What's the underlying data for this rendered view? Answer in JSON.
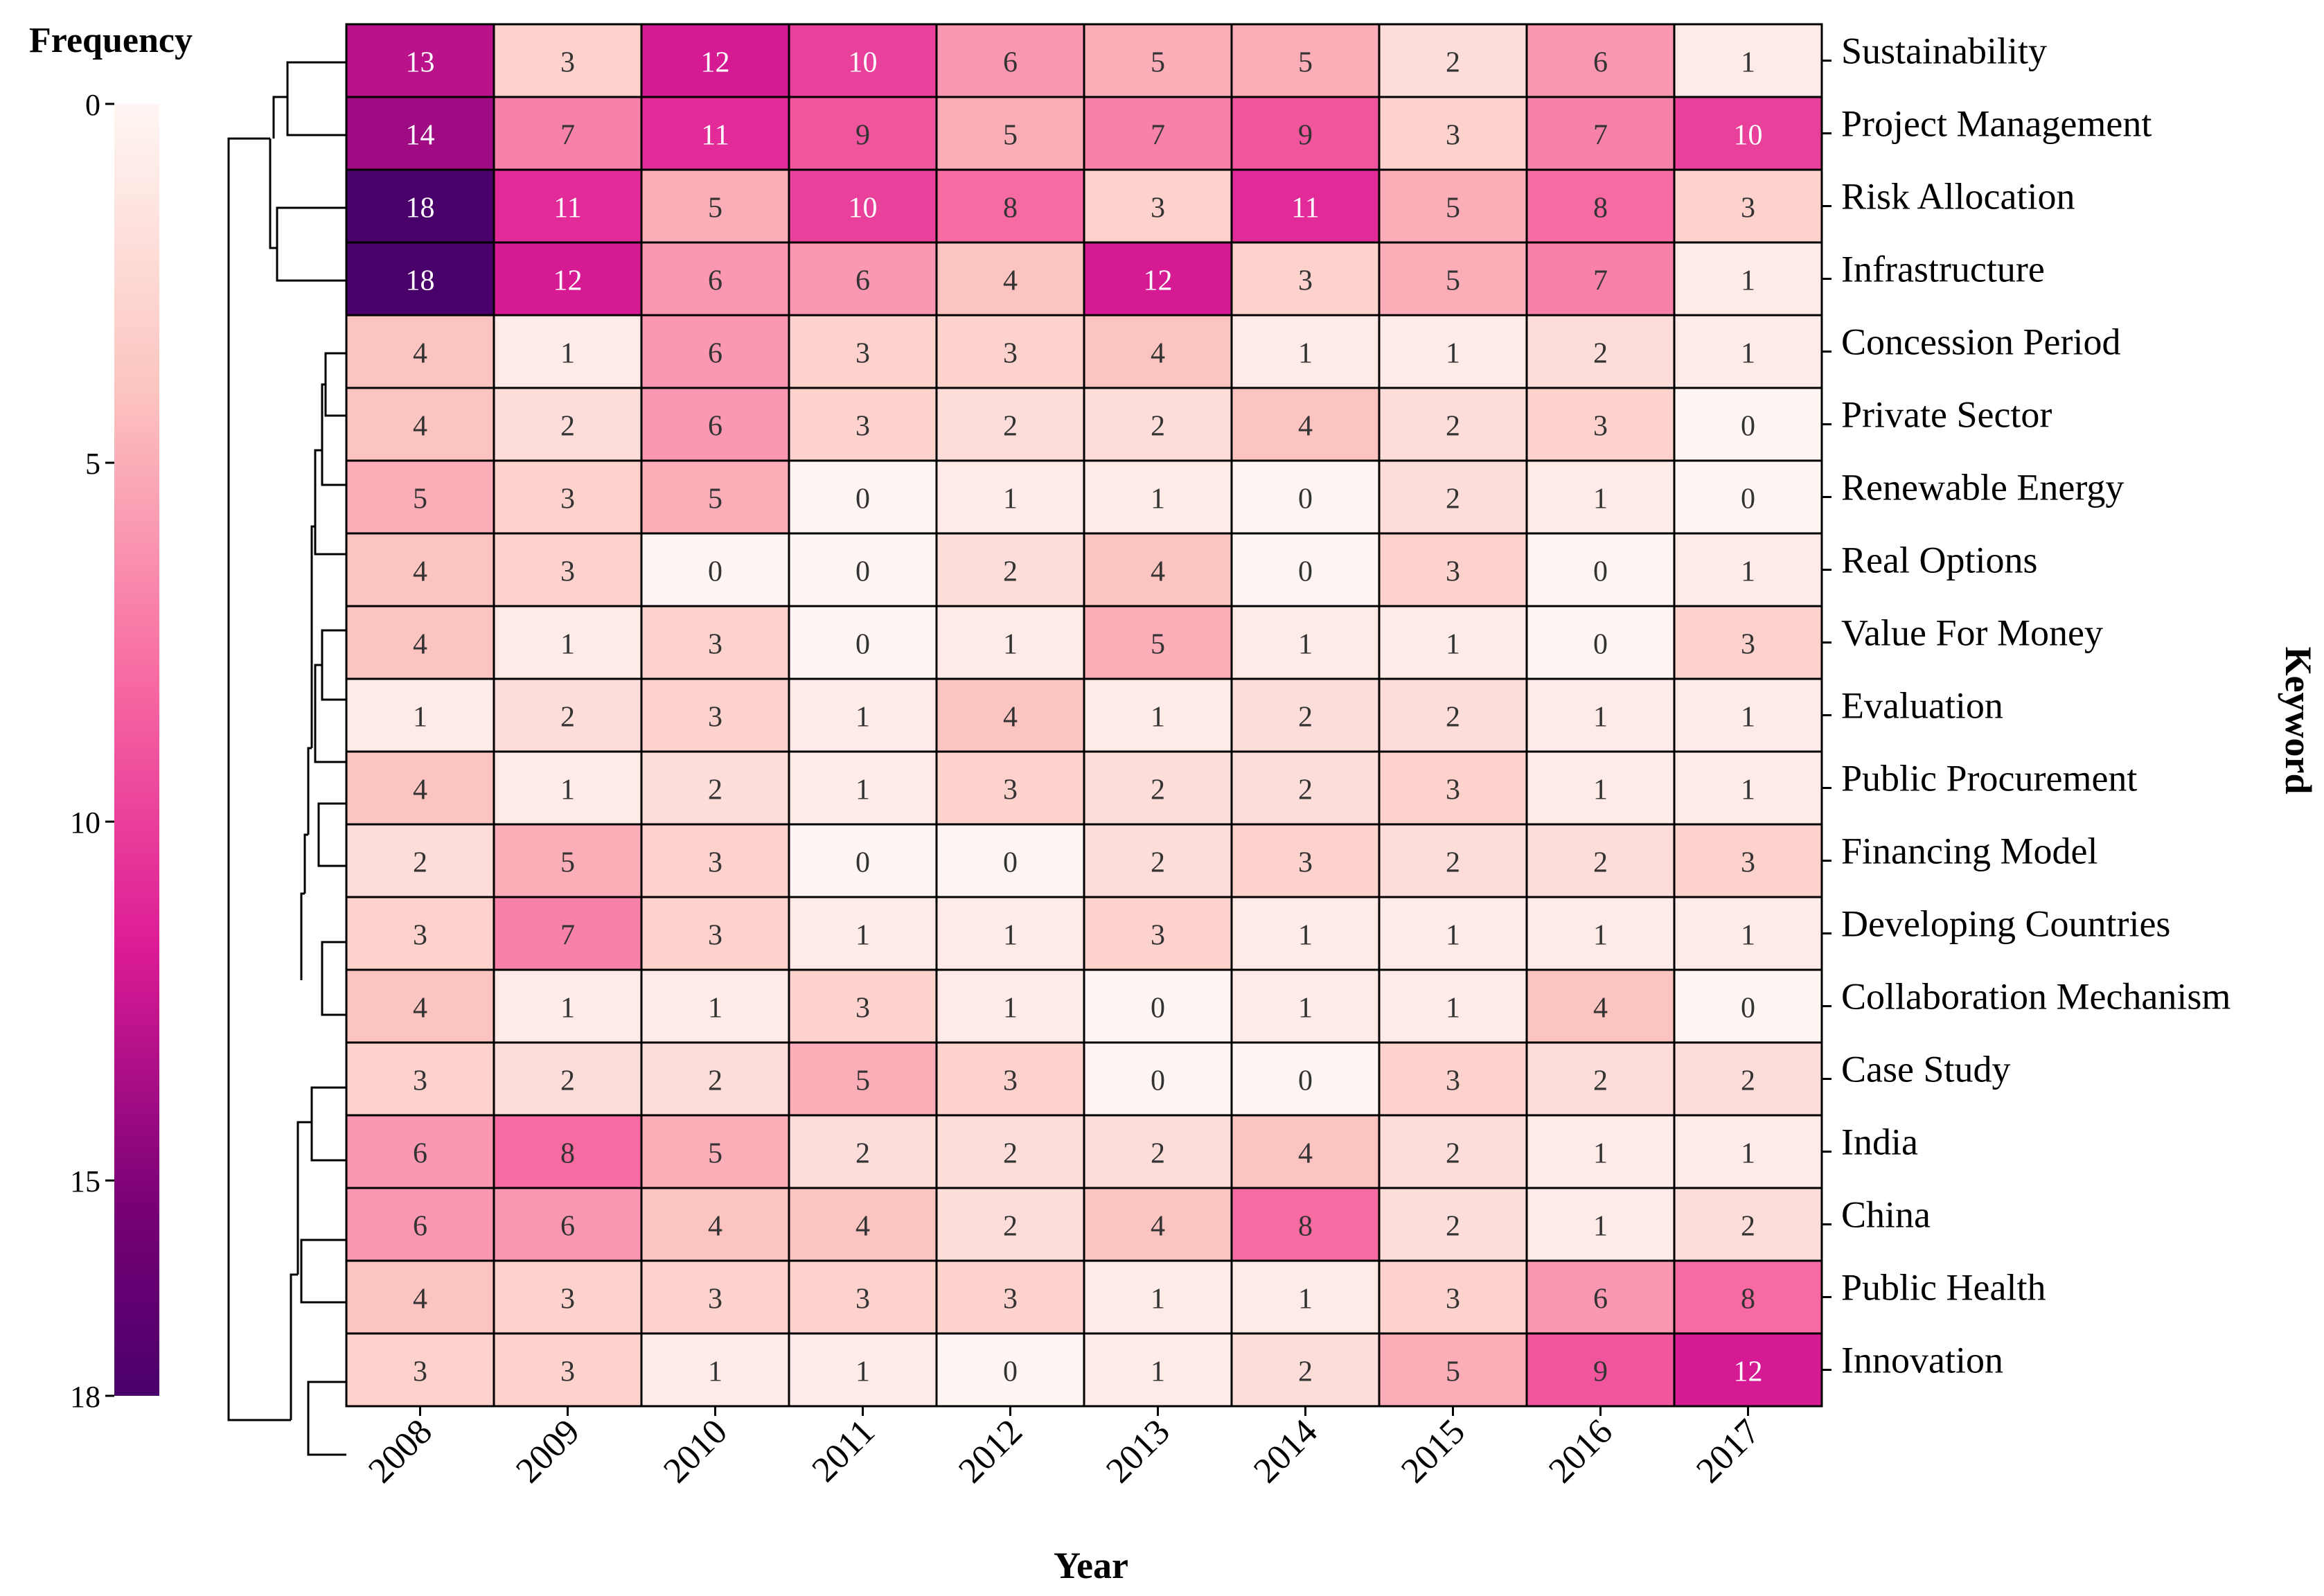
{
  "chart_data": {
    "type": "heatmap",
    "xlabel": "Year",
    "ylabel": "Keyword",
    "colorbar": {
      "title": "Frequency",
      "range": [
        0,
        18
      ],
      "ticks": [
        0,
        5,
        10,
        15,
        18
      ],
      "orientation": "reversed (0 at top, 18 at bottom)",
      "colors": [
        "#fff6f3",
        "#fcc5c0",
        "#f768a1",
        "#dd1c96",
        "#7a0177",
        "#49006a"
      ]
    },
    "columns": [
      "2008",
      "2009",
      "2010",
      "2011",
      "2012",
      "2013",
      "2014",
      "2015",
      "2016",
      "2017"
    ],
    "rows": [
      "Sustainability",
      "Project Management",
      "Risk Allocation",
      "Infrastructure",
      "Concession Period",
      "Private Sector",
      "Renewable Energy",
      "Real Options",
      "Value For Money",
      "Evaluation",
      "Public Procurement",
      "Financing Model",
      "Developing Countries",
      "Collaboration Mechanism",
      "Case Study",
      "India",
      "China",
      "Public Health",
      "Innovation"
    ],
    "values": [
      [
        13,
        3,
        12,
        10,
        6,
        5,
        5,
        2,
        6,
        1
      ],
      [
        14,
        7,
        11,
        9,
        5,
        7,
        9,
        3,
        7,
        10
      ],
      [
        18,
        11,
        5,
        10,
        8,
        3,
        11,
        5,
        8,
        3
      ],
      [
        18,
        12,
        6,
        6,
        4,
        12,
        3,
        5,
        7,
        1
      ],
      [
        4,
        1,
        6,
        3,
        3,
        4,
        1,
        1,
        2,
        1
      ],
      [
        4,
        2,
        6,
        3,
        2,
        2,
        4,
        2,
        3,
        0
      ],
      [
        5,
        3,
        5,
        0,
        1,
        1,
        0,
        2,
        1,
        0
      ],
      [
        4,
        3,
        0,
        0,
        2,
        4,
        0,
        3,
        0,
        1
      ],
      [
        4,
        1,
        3,
        0,
        1,
        5,
        1,
        1,
        0,
        3
      ],
      [
        1,
        2,
        3,
        1,
        4,
        1,
        2,
        2,
        1,
        1
      ],
      [
        4,
        1,
        2,
        1,
        3,
        2,
        2,
        3,
        1,
        1
      ],
      [
        2,
        5,
        3,
        0,
        0,
        2,
        3,
        2,
        2,
        3
      ],
      [
        3,
        7,
        3,
        1,
        1,
        3,
        1,
        1,
        1,
        1
      ],
      [
        4,
        1,
        1,
        3,
        1,
        0,
        1,
        1,
        4,
        0
      ],
      [
        3,
        2,
        2,
        5,
        3,
        0,
        0,
        3,
        2,
        2
      ],
      [
        6,
        8,
        5,
        2,
        2,
        2,
        4,
        2,
        1,
        1
      ],
      [
        6,
        6,
        4,
        4,
        2,
        4,
        8,
        2,
        1,
        2
      ],
      [
        4,
        3,
        3,
        3,
        3,
        1,
        1,
        3,
        6,
        8
      ],
      [
        3,
        3,
        1,
        1,
        0,
        1,
        2,
        5,
        9,
        12
      ]
    ],
    "dendrogram": "row clustering shown on left"
  }
}
